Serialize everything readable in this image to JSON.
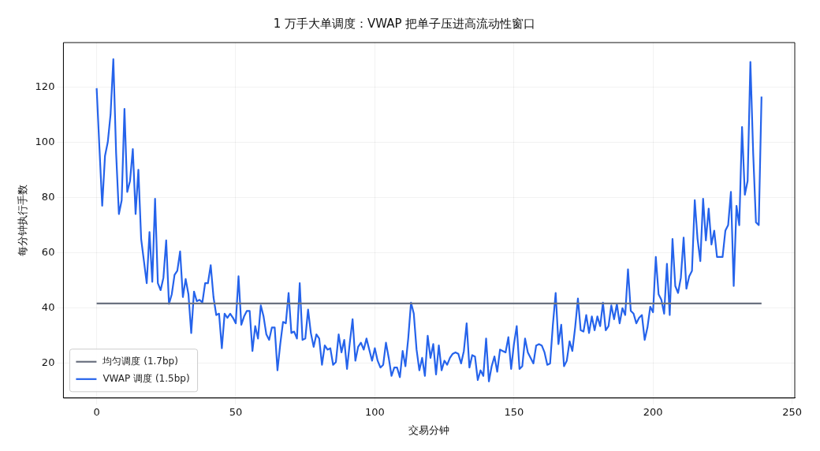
{
  "chart_data": {
    "type": "line",
    "title": "1 万手大单调度：VWAP 把单子压进高流动性窗口",
    "xlabel": "交易分钟",
    "ylabel": "每分钟执行手数",
    "xlim": [
      -11.95,
      250.95
    ],
    "xticks": [
      0,
      50,
      100,
      150,
      200,
      250
    ],
    "ylim": [
      7.5,
      136
    ],
    "yticks": [
      20,
      40,
      60,
      80,
      100,
      120
    ],
    "grid": true,
    "legend": "bottom left",
    "line_style": "solid",
    "marker": "none",
    "series": [
      {
        "name": "均匀调度 (1.7bp)",
        "color": "#6b7280",
        "x": [
          0,
          239
        ],
        "values": [
          41.67,
          41.67
        ]
      },
      {
        "name": "VWAP 调度 (1.5bp)",
        "color": "#2563eb",
        "x": [
          0,
          1,
          2,
          3,
          4,
          5,
          6,
          7,
          8,
          9,
          10,
          11,
          12,
          13,
          14,
          15,
          16,
          17,
          18,
          19,
          20,
          21,
          22,
          23,
          24,
          25,
          26,
          27,
          28,
          29,
          30,
          31,
          32,
          33,
          34,
          35,
          36,
          37,
          38,
          39,
          40,
          41,
          42,
          43,
          44,
          45,
          46,
          47,
          48,
          49,
          50,
          51,
          52,
          53,
          54,
          55,
          56,
          57,
          58,
          59,
          60,
          61,
          62,
          63,
          64,
          65,
          66,
          67,
          68,
          69,
          70,
          71,
          72,
          73,
          74,
          75,
          76,
          77,
          78,
          79,
          80,
          81,
          82,
          83,
          84,
          85,
          86,
          87,
          88,
          89,
          90,
          91,
          92,
          93,
          94,
          95,
          96,
          97,
          98,
          99,
          100,
          101,
          102,
          103,
          104,
          105,
          106,
          107,
          108,
          109,
          110,
          111,
          112,
          113,
          114,
          115,
          116,
          117,
          118,
          119,
          120,
          121,
          122,
          123,
          124,
          125,
          126,
          127,
          128,
          129,
          130,
          131,
          132,
          133,
          134,
          135,
          136,
          137,
          138,
          139,
          140,
          141,
          142,
          143,
          144,
          145,
          146,
          147,
          148,
          149,
          150,
          151,
          152,
          153,
          154,
          155,
          156,
          157,
          158,
          159,
          160,
          161,
          162,
          163,
          164,
          165,
          166,
          167,
          168,
          169,
          170,
          171,
          172,
          173,
          174,
          175,
          176,
          177,
          178,
          179,
          180,
          181,
          182,
          183,
          184,
          185,
          186,
          187,
          188,
          189,
          190,
          191,
          192,
          193,
          194,
          195,
          196,
          197,
          198,
          199,
          200,
          201,
          202,
          203,
          204,
          205,
          206,
          207,
          208,
          209,
          210,
          211,
          212,
          213,
          214,
          215,
          216,
          217,
          218,
          219,
          220,
          221,
          222,
          223,
          224,
          225,
          226,
          227,
          228,
          229,
          230,
          231,
          232,
          233,
          234,
          235,
          236,
          237,
          238,
          239
        ],
        "values": [
          119.5,
          98,
          77,
          95,
          100,
          110,
          130,
          96,
          74,
          79,
          112,
          82,
          86,
          97.5,
          74,
          90,
          65,
          57,
          49,
          67.5,
          49.5,
          79.5,
          49,
          46.5,
          51,
          64.5,
          41.5,
          45,
          52,
          53.5,
          60.5,
          44,
          50.5,
          45,
          31,
          46,
          42.5,
          43,
          42,
          49,
          49,
          55.5,
          44,
          37.5,
          38,
          25.5,
          38,
          36.5,
          38,
          36.5,
          34.5,
          51.5,
          34,
          37,
          39,
          39,
          24.5,
          33.5,
          29,
          41,
          37,
          30.5,
          28.5,
          33,
          33,
          17.5,
          27,
          35,
          34.5,
          45.5,
          31,
          31.5,
          29,
          49,
          28.5,
          29,
          39.5,
          31,
          26,
          30.5,
          29,
          19.5,
          26.5,
          25,
          25.5,
          19.5,
          20.5,
          30.5,
          24,
          28.5,
          18,
          27.5,
          36,
          21,
          26,
          27.5,
          25,
          29,
          25,
          21,
          25.5,
          21,
          18.5,
          19.5,
          27.5,
          22,
          15.5,
          18.5,
          18.5,
          15,
          24.5,
          19,
          29,
          42,
          38,
          25,
          17.5,
          22,
          15.5,
          30,
          22,
          27,
          16,
          26.5,
          17.5,
          21,
          19.5,
          22,
          23.5,
          24,
          23.5,
          20,
          24.5,
          34.5,
          18.5,
          23,
          22.5,
          14,
          17.5,
          15.5,
          29,
          13.5,
          19,
          22.5,
          17,
          25,
          24.5,
          24,
          29.5,
          18,
          27,
          33.5,
          18,
          19,
          29,
          24,
          22,
          20,
          26.5,
          27,
          26.5,
          24,
          19.5,
          20,
          34,
          45.5,
          27,
          34,
          19,
          21,
          28,
          24.5,
          33,
          43.5,
          32,
          31.5,
          37.5,
          31,
          37,
          32,
          37,
          33.5,
          42,
          32,
          33.5,
          41,
          36,
          41.5,
          34.5,
          40,
          37.5,
          54,
          39,
          38,
          34.5,
          36.5,
          37.5,
          28.5,
          33,
          40.5,
          38.5,
          58.5,
          45,
          43,
          38,
          56,
          37.5,
          65,
          48,
          45.5,
          51,
          65.5,
          47,
          51.5,
          53.5,
          79,
          65,
          57,
          79.5,
          64.5,
          76,
          63,
          68,
          58.5,
          58.5,
          58.5,
          68,
          70,
          82,
          48,
          77,
          70,
          105.5,
          81,
          86,
          129,
          96,
          71,
          70,
          116.5
        ]
      }
    ]
  }
}
